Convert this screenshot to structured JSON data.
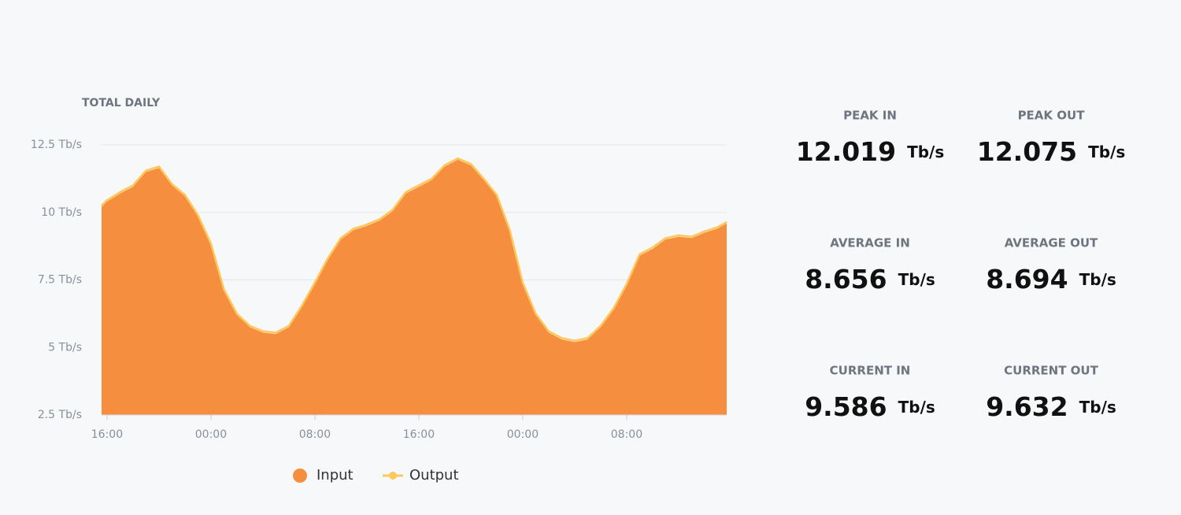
{
  "chart_data": {
    "type": "area",
    "title": "TOTAL DAILY",
    "x": [
      -0.42,
      0,
      1,
      2,
      3,
      4,
      5,
      6,
      7,
      8,
      9,
      10,
      11,
      12,
      13,
      14,
      15,
      16,
      17,
      18,
      19,
      20,
      21,
      22,
      23,
      24,
      25,
      26,
      27,
      28,
      29,
      30,
      31,
      32,
      33,
      34,
      35,
      36,
      37,
      38,
      39,
      40,
      41,
      42,
      43,
      44,
      45,
      46,
      47,
      47.7
    ],
    "series": [
      {
        "name": "Input",
        "color": "#f58f3f",
        "values": [
          10.2,
          10.4,
          10.7,
          10.95,
          11.5,
          11.65,
          11.0,
          10.6,
          9.85,
          8.8,
          7.1,
          6.2,
          5.75,
          5.55,
          5.5,
          5.75,
          6.5,
          7.35,
          8.25,
          9.0,
          9.35,
          9.5,
          9.7,
          10.05,
          10.7,
          10.95,
          11.2,
          11.7,
          11.95,
          11.75,
          11.2,
          10.6,
          9.3,
          7.35,
          6.2,
          5.55,
          5.3,
          5.2,
          5.3,
          5.75,
          6.4,
          7.3,
          8.4,
          8.65,
          9.0,
          9.1,
          9.05,
          9.25,
          9.4,
          9.6
        ]
      },
      {
        "name": "Output",
        "color": "#fdc75a",
        "values": [
          10.25,
          10.45,
          10.75,
          11.0,
          11.55,
          11.7,
          11.05,
          10.65,
          9.9,
          8.85,
          7.15,
          6.25,
          5.8,
          5.6,
          5.55,
          5.8,
          6.55,
          7.4,
          8.3,
          9.05,
          9.4,
          9.55,
          9.75,
          10.1,
          10.75,
          11.0,
          11.25,
          11.75,
          12.0,
          11.8,
          11.25,
          10.65,
          9.35,
          7.4,
          6.25,
          5.6,
          5.35,
          5.25,
          5.35,
          5.8,
          6.45,
          7.35,
          8.45,
          8.7,
          9.05,
          9.15,
          9.1,
          9.3,
          9.45,
          9.65
        ]
      }
    ],
    "xlim": [
      -0.42,
      47.7
    ],
    "xticks": [
      {
        "value": 0,
        "label": "16:00"
      },
      {
        "value": 8,
        "label": "00:00"
      },
      {
        "value": 16,
        "label": "08:00"
      },
      {
        "value": 24,
        "label": "16:00"
      },
      {
        "value": 32,
        "label": "00:00"
      },
      {
        "value": 40,
        "label": "08:00"
      }
    ],
    "ylim": [
      2.5,
      12.5
    ],
    "yticks": [
      {
        "value": 2.5,
        "label": "2.5 Tb/s"
      },
      {
        "value": 5,
        "label": "5 Tb/s"
      },
      {
        "value": 7.5,
        "label": "7.5 Tb/s"
      },
      {
        "value": 10,
        "label": "10 Tb/s"
      },
      {
        "value": 12.5,
        "label": "12.5 Tb/s"
      }
    ],
    "grid": true
  },
  "stats": [
    {
      "label": "PEAK IN",
      "value": 12.019,
      "unit": "Tb/s"
    },
    {
      "label": "PEAK OUT",
      "value": 12.075,
      "unit": "Tb/s"
    },
    {
      "label": "AVERAGE IN",
      "value": 8.656,
      "unit": "Tb/s"
    },
    {
      "label": "AVERAGE OUT",
      "value": 8.694,
      "unit": "Tb/s"
    },
    {
      "label": "CURRENT IN",
      "value": 9.586,
      "unit": "Tb/s"
    },
    {
      "label": "CURRENT OUT",
      "value": 9.632,
      "unit": "Tb/s"
    }
  ]
}
